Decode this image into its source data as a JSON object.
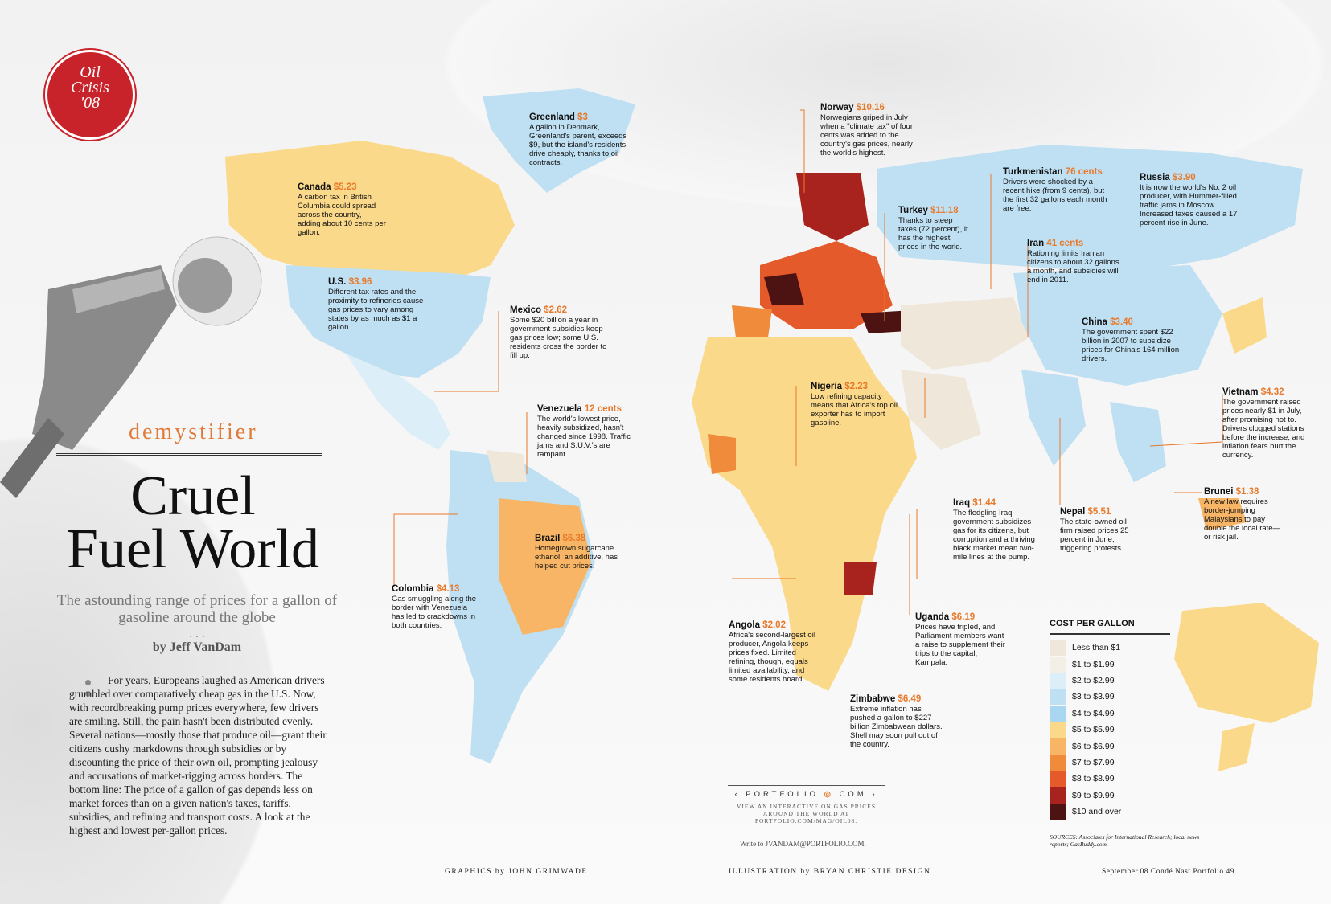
{
  "badge": {
    "line1": "Oil",
    "line2": "Crisis",
    "line3": "'08"
  },
  "kicker": "demystifier",
  "headline": {
    "line1": "Cruel",
    "line2": "Fuel World"
  },
  "dek": "The astounding range of prices for a gallon of gasoline around the globe",
  "dots": ". . .",
  "byline": "by Jeff VanDam",
  "body": "For years, Europeans laughed as American drivers grumbled over comparatively cheap gas in the U.S. Now, with recordbreaking pump prices everywhere, few drivers are smiling. Still, the pain hasn't been distributed evenly. Several nations—mostly those that produce oil—grant their citizens cushy markdowns through subsidies or by discounting the price of their own oil, prompting jealousy and accusations of market-rigging across borders. The bottom line: The price of a gallon of gas depends less on market forces than on a given nation's taxes, tariffs, subsidies, and refining and transport costs. A look at the highest and lowest per-gallon prices.",
  "colors": {
    "scale": [
      "#efe7da",
      "#f3efe6",
      "#dceef8",
      "#bfe0f3",
      "#a9d6f0",
      "#fbd98a",
      "#f7b565",
      "#ef8b3a",
      "#e55a2b",
      "#a8231d",
      "#4d1212"
    ],
    "badge": "#c8232b",
    "accent": "#e8792b"
  },
  "legend": {
    "title": "COST PER GALLON",
    "items": [
      "Less than $1",
      "$1 to $1.99",
      "$2 to $2.99",
      "$3 to $3.99",
      "$4 to $4.99",
      "$5 to $5.99",
      "$6 to $6.99",
      "$7 to $7.99",
      "$8 to $8.99",
      "$9 to $9.99",
      "$10 and over"
    ]
  },
  "callouts": {
    "greenland": {
      "name": "Greenland",
      "price": "$3",
      "text": "A gallon in Denmark, Greenland's parent, exceeds $9, but the island's residents drive cheaply, thanks to oil contracts."
    },
    "norway": {
      "name": "Norway",
      "price": "$10.16",
      "text": "Norwegians griped in July when a \"climate tax\" of four cents was added to the country's gas prices, nearly the world's highest."
    },
    "canada": {
      "name": "Canada",
      "price": "$5.23",
      "text": "A carbon tax in British Columbia could spread across the country, adding about 10 cents per gallon."
    },
    "us": {
      "name": "U.S.",
      "price": "$3.96",
      "text": "Different tax rates and the proximity to refineries cause gas prices to vary among states by as much as $1 a gallon."
    },
    "mexico": {
      "name": "Mexico",
      "price": "$2.62",
      "text": "Some $20 billion a year in government subsidies keep gas prices low; some U.S. residents cross the border to fill up."
    },
    "venezuela": {
      "name": "Venezuela",
      "price": "12 cents",
      "text": "The world's lowest price, heavily subsidized, hasn't changed since 1998. Traffic jams and S.U.V.'s are rampant."
    },
    "brazil": {
      "name": "Brazil",
      "price": "$6.38",
      "text": "Homegrown sugarcane ethanol, an additive, has helped cut prices."
    },
    "colombia": {
      "name": "Colombia",
      "price": "$4.13",
      "text": "Gas smuggling along the border with Venezuela has led to crackdowns in both countries."
    },
    "turkmenistan": {
      "name": "Turkmenistan",
      "price": "76 cents",
      "text": "Drivers were shocked by a recent hike (from 9 cents), but the first 32 gallons each month are free."
    },
    "russia": {
      "name": "Russia",
      "price": "$3.90",
      "text": "It is now the world's No. 2 oil producer, with Hummer-filled traffic jams in Moscow. Increased taxes caused a 17 percent rise in June."
    },
    "turkey": {
      "name": "Turkey",
      "price": "$11.18",
      "text": "Thanks to steep taxes (72 percent), it has the highest prices in the world."
    },
    "iran": {
      "name": "Iran",
      "price": "41 cents",
      "text": "Rationing limits Iranian citizens to about 32 gallons a month, and subsidies will end in 2011."
    },
    "china": {
      "name": "China",
      "price": "$3.40",
      "text": "The government spent $22 billion in 2007 to subsidize prices for China's 164 million drivers."
    },
    "nigeria": {
      "name": "Nigeria",
      "price": "$2.23",
      "text": "Low refining capacity means that Africa's top oil exporter has to import gasoline."
    },
    "vietnam": {
      "name": "Vietnam",
      "price": "$4.32",
      "text": "The government raised prices nearly $1 in July, after promising not to. Drivers clogged stations before the increase, and inflation fears hurt the currency."
    },
    "iraq": {
      "name": "Iraq",
      "price": "$1.44",
      "text": "The fledgling Iraqi government subsidizes gas for its citizens, but corruption and a thriving black market mean two-mile lines at the pump."
    },
    "nepal": {
      "name": "Nepal",
      "price": "$5.51",
      "text": "The state-owned oil firm raised prices 25 percent in June, triggering protests."
    },
    "brunei": {
      "name": "Brunei",
      "price": "$1.38",
      "text": "A new law requires border-jumping Malaysians to pay double the local rate—or risk jail."
    },
    "angola": {
      "name": "Angola",
      "price": "$2.02",
      "text": "Africa's second-largest oil producer, Angola keeps prices fixed. Limited refining, though, equals limited availability, and some residents hoard."
    },
    "uganda": {
      "name": "Uganda",
      "price": "$6.19",
      "text": "Prices have tripled, and Parliament members want a raise to supplement their trips to the capital, Kampala."
    },
    "zimbabwe": {
      "name": "Zimbabwe",
      "price": "$6.49",
      "text": "Extreme inflation has pushed a gallon to $227 billion Zimbabwean dollars. Shell may soon pull out of the country."
    }
  },
  "portfolio": {
    "logo_left": "PORTFOLIO",
    "logo_right": "COM",
    "text": "VIEW AN INTERACTIVE ON GAS PRICES AROUND THE WORLD AT PORTFOLIO.COM/MAG/OIL08.",
    "write_to": "Write to JVANDAM@PORTFOLIO.COM."
  },
  "source": "SOURCES: Associates for International Research; local news reports; GasBuddy.com.",
  "footer": {
    "graphics": "GRAPHICS by JOHN GRIMWADE",
    "illustration": "ILLUSTRATION by BRYAN CHRISTIE DESIGN",
    "folio": "September.08.Condé Nast Portfolio 49"
  }
}
